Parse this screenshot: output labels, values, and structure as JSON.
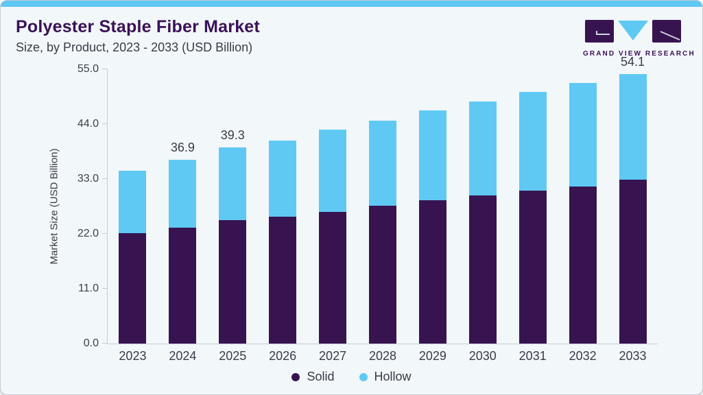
{
  "header": {
    "title": "Polyester Staple Fiber Market",
    "subtitle": "Size, by Product, 2023 - 2033 (USD Billion)"
  },
  "brand": {
    "logo_text": "GRAND VIEW RESEARCH"
  },
  "chart_data": {
    "type": "bar",
    "stacked": true,
    "title": "Polyester Staple Fiber Market Size, by Product, 2023 - 2033 (USD Billion)",
    "ylabel": "Market Size (USD Billion)",
    "xlabel": "",
    "ylim": [
      0,
      55
    ],
    "yticks": [
      0,
      11,
      22,
      33,
      44,
      55
    ],
    "ytick_labels": [
      "0.0",
      "11.0",
      "22.0",
      "33.0",
      "44.0",
      "55.0"
    ],
    "categories": [
      "2023",
      "2024",
      "2025",
      "2026",
      "2027",
      "2028",
      "2029",
      "2030",
      "2031",
      "2032",
      "2033"
    ],
    "series": [
      {
        "name": "Solid",
        "color": "#371450",
        "values": [
          22.1,
          23.3,
          24.8,
          25.4,
          26.4,
          27.7,
          28.7,
          29.7,
          30.6,
          31.5,
          32.8
        ]
      },
      {
        "name": "Hollow",
        "color": "#5FC9F4",
        "values": [
          12.6,
          13.6,
          14.5,
          15.3,
          16.5,
          17.0,
          18.1,
          18.9,
          19.8,
          20.8,
          21.3
        ]
      }
    ],
    "totals": [
      34.7,
      36.9,
      39.3,
      40.7,
      42.9,
      44.7,
      46.8,
      48.6,
      50.4,
      52.3,
      54.1
    ],
    "bar_labels": {
      "2024": "36.9",
      "2025": "39.3",
      "2033": "54.1"
    },
    "legend": [
      "Solid",
      "Hollow"
    ],
    "legend_position": "bottom",
    "grid": false
  },
  "colors": {
    "accent_cyan": "#5FC9F4",
    "accent_purple": "#371450",
    "title_purple": "#3A1157",
    "text_dark": "#3B3B46",
    "axis_gray": "#C7CCD4",
    "card_bg": "#F2F7FA",
    "card_border": "#C6CCD3",
    "top_strip": "#5EC8F2"
  }
}
